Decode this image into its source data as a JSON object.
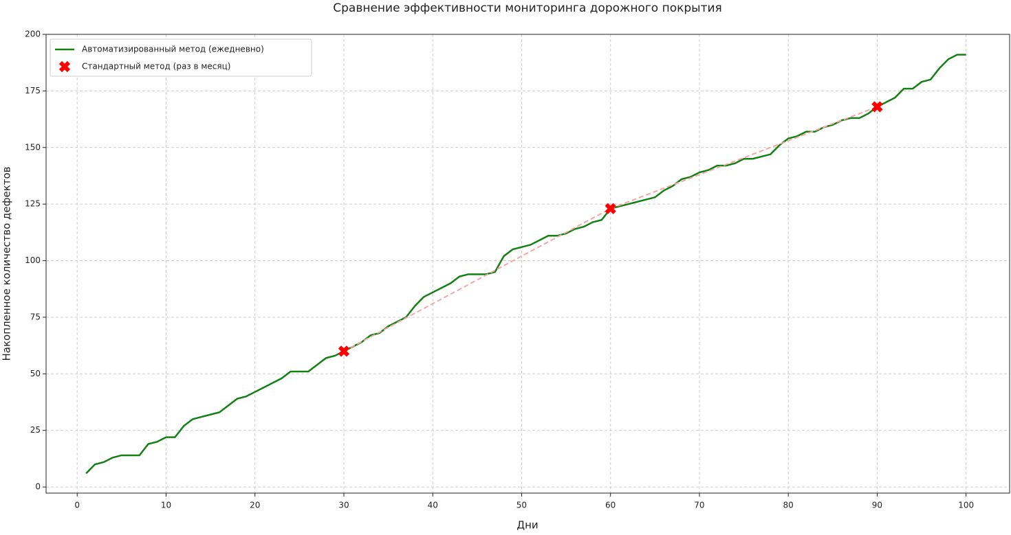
{
  "chart_data": {
    "type": "line",
    "title": "Сравнение эффективности мониторинга дорожного покрытия",
    "x_label": "Дни",
    "y_label": "Накопленное количество дефектов",
    "xlim": [
      -3.5,
      104.9
    ],
    "ylim": [
      -2.7,
      200
    ],
    "xticks": [
      0,
      10,
      20,
      30,
      40,
      50,
      60,
      70,
      80,
      90,
      100
    ],
    "yticks": [
      0,
      25,
      50,
      75,
      100,
      125,
      150,
      175,
      200
    ],
    "grid": true,
    "legend": "upper left",
    "series": [
      {
        "name": "Автоматизированный метод (ежедневно)",
        "color": "#138013",
        "kind": "line",
        "x": [
          1,
          2,
          3,
          4,
          5,
          6,
          7,
          8,
          9,
          10,
          11,
          12,
          13,
          14,
          15,
          16,
          17,
          18,
          19,
          20,
          21,
          22,
          23,
          24,
          25,
          26,
          27,
          28,
          29,
          30,
          31,
          32,
          33,
          34,
          35,
          36,
          37,
          38,
          39,
          40,
          41,
          42,
          43,
          44,
          45,
          46,
          47,
          48,
          49,
          50,
          51,
          52,
          53,
          54,
          55,
          56,
          57,
          58,
          59,
          60,
          61,
          62,
          63,
          64,
          65,
          66,
          67,
          68,
          69,
          70,
          71,
          72,
          73,
          74,
          75,
          76,
          77,
          78,
          79,
          80,
          81,
          82,
          83,
          84,
          85,
          86,
          87,
          88,
          89,
          90,
          91,
          92,
          93,
          94,
          95,
          96,
          97,
          98,
          99,
          100
        ],
        "values": [
          6,
          10,
          11,
          13,
          14,
          14,
          14,
          19,
          20,
          22,
          22,
          27,
          30,
          31,
          32,
          33,
          36,
          39,
          40,
          42,
          44,
          46,
          48,
          51,
          51,
          51,
          54,
          57,
          58,
          60,
          62,
          64,
          67,
          68,
          71,
          73,
          75,
          80,
          84,
          86,
          88,
          90,
          93,
          94,
          94,
          94,
          95,
          102,
          105,
          106,
          107,
          109,
          111,
          111,
          112,
          114,
          115,
          117,
          118,
          123,
          124,
          125,
          126,
          127,
          128,
          131,
          133,
          136,
          137,
          139,
          140,
          142,
          142,
          143,
          145,
          145,
          146,
          147,
          151,
          154,
          155,
          157,
          157,
          159,
          160,
          162,
          163,
          163,
          165,
          168,
          170,
          172,
          176,
          176,
          179,
          180,
          185,
          189,
          191,
          191
        ]
      },
      {
        "name": "Стандартный метод (раз в месяц)",
        "color": "#ff0000",
        "kind": "scatter",
        "connector": "dashed",
        "connector_color": "#f4a6a6",
        "x": [
          30,
          60,
          90
        ],
        "values": [
          60,
          123,
          168
        ]
      }
    ]
  }
}
